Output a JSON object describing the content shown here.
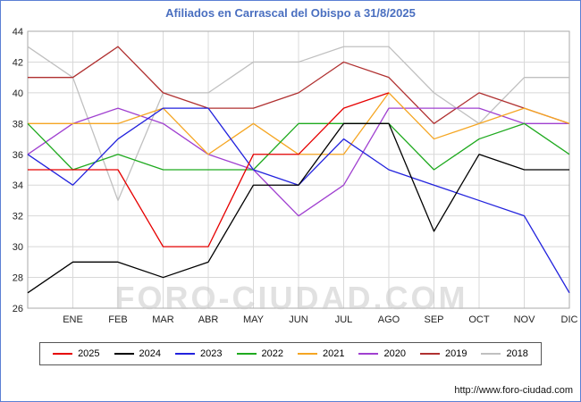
{
  "page": {
    "title": "Afiliados en Carrascal del Obispo a 31/8/2025",
    "watermark": "FORO-CIUDAD.COM",
    "footer_url": "http://www.foro-ciudad.com"
  },
  "colors": {
    "title_text": "#4a6fc0",
    "page_border": "#5b7fd4",
    "grid_line": "#d8d8d8",
    "plot_frame": "#aaaaaa",
    "watermark_text": "#c9c9c9"
  },
  "chart_data": {
    "type": "line",
    "title": "Afiliados en Carrascal del Obispo a 31/8/2025",
    "xlabel": "",
    "ylabel": "",
    "ylim": [
      26,
      44
    ],
    "ytick_step": 2,
    "grid": true,
    "legend_position": "bottom",
    "x_note": "first value of each series sits on the y-axis (December of previous year), then 12 monthly values ENE..DIC",
    "months": [
      "ENE",
      "FEB",
      "MAR",
      "ABR",
      "MAY",
      "JUN",
      "JUL",
      "AGO",
      "SEP",
      "OCT",
      "NOV",
      "DIC"
    ],
    "series": [
      {
        "name": "2025",
        "color": "#e60000",
        "values": [
          35,
          35,
          35,
          30,
          30,
          36,
          36,
          39,
          40,
          null,
          null,
          null,
          null
        ]
      },
      {
        "name": "2024",
        "color": "#000000",
        "values": [
          27,
          29,
          29,
          28,
          29,
          34,
          34,
          38,
          38,
          31,
          36,
          35,
          35
        ]
      },
      {
        "name": "2023",
        "color": "#2222dd",
        "values": [
          36,
          34,
          37,
          39,
          39,
          35,
          34,
          37,
          35,
          34,
          33,
          32,
          27
        ]
      },
      {
        "name": "2022",
        "color": "#1faa1f",
        "values": [
          38,
          35,
          36,
          35,
          35,
          35,
          38,
          38,
          38,
          35,
          37,
          38,
          36
        ]
      },
      {
        "name": "2021",
        "color": "#f5a623",
        "values": [
          38,
          38,
          38,
          39,
          36,
          38,
          36,
          36,
          40,
          37,
          38,
          39,
          38
        ]
      },
      {
        "name": "2020",
        "color": "#a040d0",
        "values": [
          36,
          38,
          39,
          38,
          36,
          35,
          32,
          34,
          39,
          39,
          39,
          38,
          38
        ]
      },
      {
        "name": "2019",
        "color": "#b03030",
        "values": [
          41,
          41,
          43,
          40,
          39,
          39,
          40,
          42,
          41,
          38,
          40,
          39,
          38
        ]
      },
      {
        "name": "2018",
        "color": "#c0c0c0",
        "values": [
          43,
          41,
          33,
          40,
          40,
          42,
          42,
          43,
          43,
          40,
          38,
          41,
          41
        ]
      }
    ]
  }
}
